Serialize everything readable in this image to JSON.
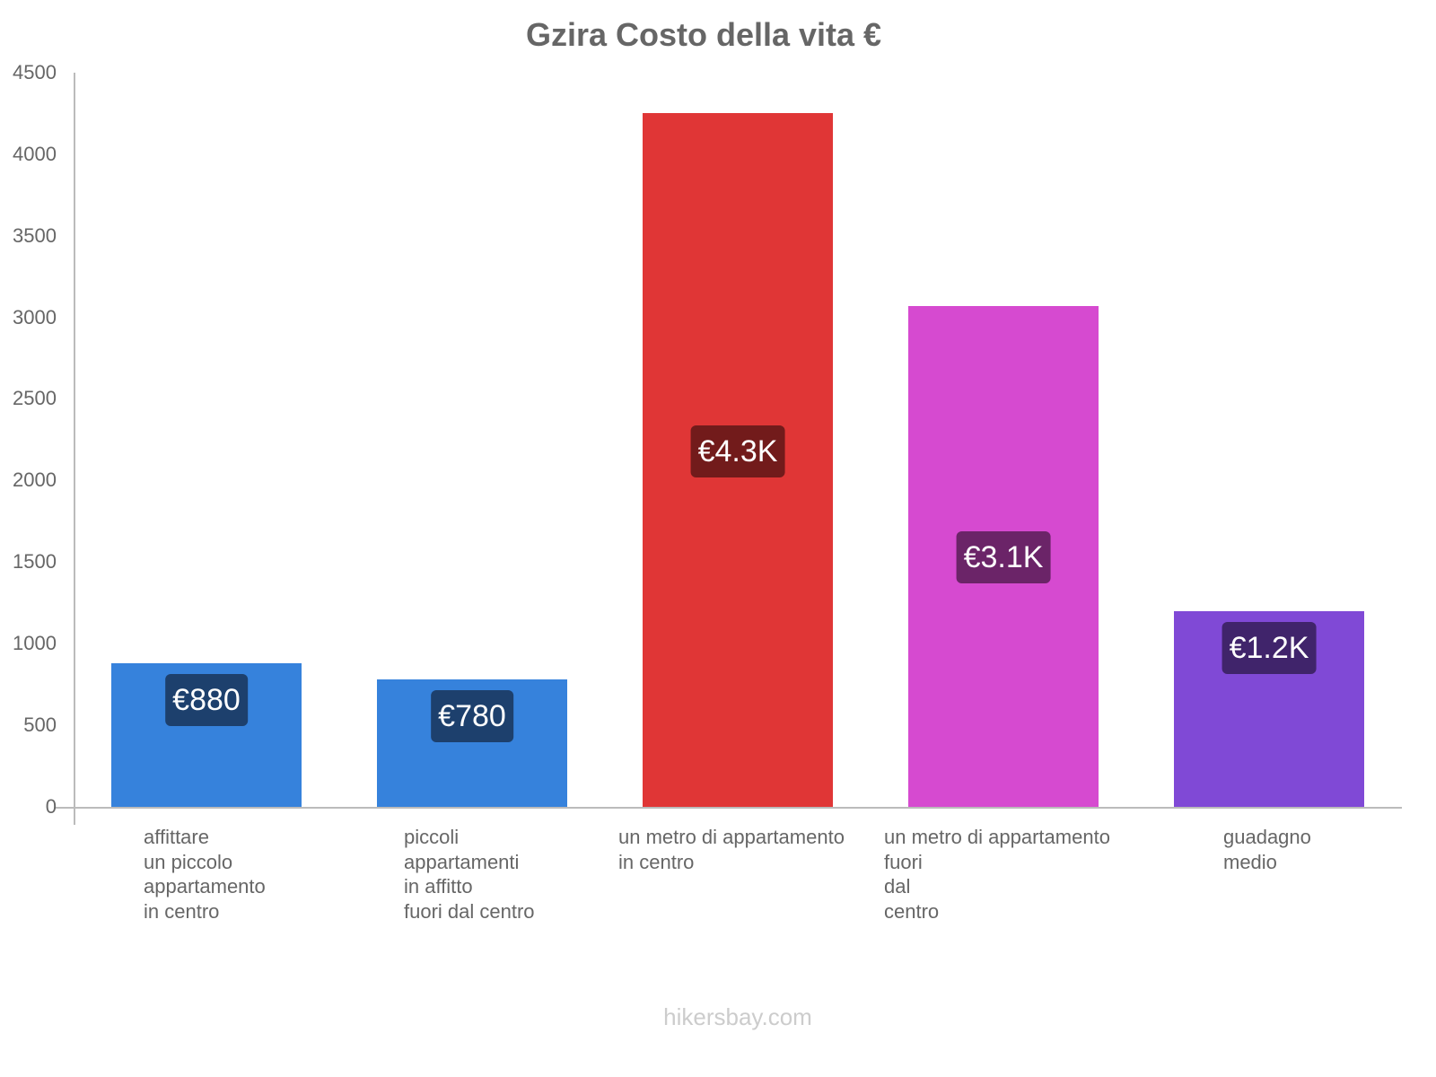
{
  "chart_data": {
    "type": "bar",
    "title": "Gzira Costo della vita €",
    "xlabel": "",
    "ylabel": "",
    "ylim": [
      0,
      4500
    ],
    "yticks": [
      "0",
      "500",
      "1000",
      "1500",
      "2000",
      "2500",
      "3000",
      "3500",
      "4000",
      "4500"
    ],
    "grid": false,
    "legend": null,
    "categories": [
      "affittare\nun piccolo\nappartamento\nin centro",
      "piccoli\nappartamenti\nin affitto\nfuori dal centro",
      "un metro di appartamento\nin centro",
      "un metro di appartamento\nfuori\ndal\ncentro",
      "guadagno\nmedio"
    ],
    "values": [
      880,
      780,
      4250,
      3070,
      1200
    ],
    "data_labels": [
      "€880",
      "€780",
      "€4.3K",
      "€3.1K",
      "€1.2K"
    ],
    "colors": [
      "#3682dc",
      "#3682dc",
      "#e03636",
      "#d64ad0",
      "#8049d6"
    ],
    "label_colors": [
      "#1d406d",
      "#1d406d",
      "#721b1b",
      "#6b2468",
      "#40246b"
    ]
  },
  "watermark": "hikersbay.com"
}
